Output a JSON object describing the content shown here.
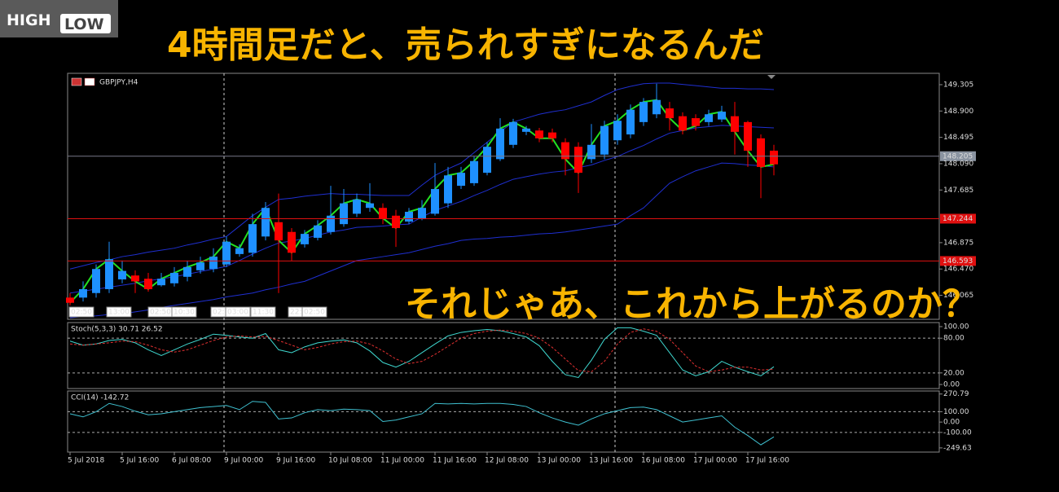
{
  "logo": {
    "left": "HIGH",
    "right": "LOW"
  },
  "captions": [
    "4時間足だと、売られすぎになるんだ",
    "それじゃあ、これから上がるのか？"
  ],
  "chart_data": [
    {
      "type": "candlestick",
      "title": "GBPJPY,H4",
      "categories": [
        "5 Jul 2018",
        null,
        null,
        null,
        "5 Jul 16:00",
        null,
        null,
        null,
        "6 Jul 08:00",
        null,
        null,
        null,
        "9 Jul 00:00",
        null,
        null,
        null,
        "9 Jul 16:00",
        null,
        null,
        null,
        "10 Jul 08:00",
        null,
        null,
        null,
        "11 Jul 00:00",
        null,
        null,
        null,
        "11 Jul 16:00",
        null,
        null,
        null,
        "12 Jul 08:00",
        null,
        null,
        null,
        "13 Jul 00:00",
        null,
        null,
        null,
        "13 Jul 16:00",
        null,
        null,
        null,
        "16 Jul 08:00",
        null,
        null,
        null,
        "17 Jul 00:00",
        null,
        null,
        null,
        "17 Jul 16:00",
        null,
        null
      ],
      "open": [
        146.03,
        146.03,
        146.1,
        146.16,
        146.31,
        146.37,
        146.32,
        146.22,
        146.25,
        146.35,
        146.45,
        146.47,
        146.54,
        146.7,
        146.72,
        146.97,
        147.19,
        147.04,
        146.85,
        146.95,
        147.04,
        147.16,
        147.32,
        147.41,
        147.41,
        147.29,
        147.2,
        147.25,
        147.32,
        147.48,
        147.75,
        147.79,
        147.95,
        148.16,
        148.38,
        148.58,
        148.6,
        148.57,
        148.42,
        148.35,
        148.16,
        148.23,
        148.45,
        148.54,
        148.73,
        148.85,
        148.94,
        148.82,
        148.79,
        148.73,
        148.77,
        148.82,
        148.73,
        148.48,
        148.29
      ],
      "high": [
        146.1,
        146.28,
        146.54,
        146.89,
        146.6,
        146.45,
        146.41,
        146.41,
        146.5,
        146.6,
        146.66,
        146.79,
        146.97,
        146.85,
        147.32,
        147.5,
        147.63,
        147.1,
        147.07,
        147.22,
        147.75,
        147.7,
        147.63,
        147.79,
        147.48,
        147.38,
        147.41,
        147.53,
        148.1,
        148.04,
        148.04,
        148.2,
        148.42,
        148.79,
        148.78,
        148.67,
        148.64,
        148.63,
        148.48,
        148.42,
        148.7,
        148.75,
        148.85,
        149.0,
        149.1,
        149.32,
        149.04,
        148.88,
        148.85,
        148.92,
        148.98,
        149.04,
        148.75,
        148.54,
        148.38
      ],
      "low": [
        145.91,
        145.97,
        146.03,
        146.1,
        146.25,
        146.1,
        146.12,
        146.2,
        146.2,
        146.28,
        146.4,
        146.42,
        146.5,
        146.66,
        146.66,
        146.91,
        146.1,
        146.6,
        146.8,
        146.91,
        147.0,
        147.12,
        147.27,
        147.35,
        147.16,
        146.81,
        147.16,
        147.22,
        147.29,
        147.41,
        147.7,
        147.75,
        147.91,
        148.13,
        148.33,
        148.53,
        148.42,
        148.42,
        147.91,
        147.64,
        148.1,
        148.16,
        148.38,
        148.48,
        148.67,
        148.79,
        148.6,
        148.54,
        148.6,
        148.67,
        148.73,
        148.23,
        148.04,
        147.56,
        147.91
      ],
      "close": [
        145.95,
        146.16,
        146.47,
        146.62,
        146.44,
        146.28,
        146.16,
        146.32,
        146.41,
        146.5,
        146.57,
        146.66,
        146.89,
        146.79,
        147.16,
        147.41,
        146.91,
        146.72,
        147.01,
        147.14,
        147.29,
        147.48,
        147.54,
        147.48,
        147.25,
        147.1,
        147.35,
        147.41,
        147.7,
        147.91,
        147.95,
        148.13,
        148.35,
        148.63,
        148.73,
        148.63,
        148.48,
        148.48,
        148.16,
        147.95,
        148.38,
        148.67,
        148.75,
        148.92,
        149.04,
        149.07,
        148.79,
        148.6,
        148.67,
        148.85,
        148.89,
        148.58,
        148.29,
        148.04,
        148.08
      ],
      "up_color": "#1e90ff",
      "down_color": "#ff0000",
      "overlays": [
        {
          "color": "#1f2fd0",
          "values": [
            146.47,
            146.52,
            146.57,
            146.61,
            146.66,
            146.69,
            146.73,
            146.76,
            146.79,
            146.84,
            146.88,
            146.93,
            146.97,
            147.13,
            147.29,
            147.42,
            147.54,
            147.56,
            147.59,
            147.61,
            147.63,
            147.62,
            147.62,
            147.61,
            147.6,
            147.6,
            147.6,
            147.76,
            147.91,
            148.01,
            148.1,
            148.26,
            148.42,
            148.58,
            148.73,
            148.79,
            148.85,
            148.89,
            148.92,
            148.98,
            149.04,
            149.14,
            149.23,
            149.28,
            149.32,
            149.33,
            149.33,
            149.31,
            149.29,
            149.27,
            149.25,
            149.25,
            149.24,
            149.24,
            149.23
          ]
        },
        {
          "color": "#1f2fd0",
          "values": [
            146.1,
            146.13,
            146.16,
            146.19,
            146.22,
            146.25,
            146.29,
            146.32,
            146.35,
            146.39,
            146.43,
            146.47,
            146.51,
            146.6,
            146.7,
            146.79,
            146.87,
            146.9,
            146.94,
            146.99,
            147.04,
            147.07,
            147.11,
            147.12,
            147.13,
            147.15,
            147.16,
            147.27,
            147.37,
            147.44,
            147.51,
            147.6,
            147.68,
            147.77,
            147.85,
            147.89,
            147.93,
            147.96,
            147.98,
            148.03,
            148.07,
            148.14,
            148.2,
            148.29,
            148.37,
            148.47,
            148.56,
            148.6,
            148.64,
            148.66,
            148.68,
            148.67,
            148.66,
            148.65,
            148.64
          ]
        },
        {
          "color": "#1f2fd0",
          "values": [
            145.72,
            145.74,
            145.75,
            145.77,
            145.78,
            145.81,
            145.84,
            145.88,
            145.91,
            145.94,
            145.97,
            146.0,
            146.04,
            146.07,
            146.1,
            146.15,
            146.19,
            146.24,
            146.28,
            146.36,
            146.44,
            146.52,
            146.6,
            146.63,
            146.66,
            146.69,
            146.72,
            146.77,
            146.82,
            146.86,
            146.91,
            146.93,
            146.94,
            146.96,
            146.97,
            146.99,
            147.01,
            147.02,
            147.04,
            147.07,
            147.1,
            147.13,
            147.16,
            147.29,
            147.41,
            147.6,
            147.79,
            147.89,
            147.98,
            148.04,
            148.1,
            148.09,
            148.07,
            148.06,
            148.04
          ]
        },
        {
          "color": "#22e022",
          "values": [
            145.95,
            146.16,
            146.47,
            146.62,
            146.44,
            146.28,
            146.16,
            146.32,
            146.41,
            146.5,
            146.57,
            146.66,
            146.89,
            146.79,
            147.16,
            147.41,
            146.91,
            146.72,
            147.01,
            147.14,
            147.29,
            147.48,
            147.54,
            147.48,
            147.25,
            147.1,
            147.35,
            147.41,
            147.7,
            147.91,
            147.95,
            148.13,
            148.35,
            148.63,
            148.73,
            148.63,
            148.48,
            148.48,
            148.16,
            147.95,
            148.38,
            148.67,
            148.75,
            148.92,
            149.04,
            149.07,
            148.79,
            148.6,
            148.67,
            148.85,
            148.89,
            148.58,
            148.29,
            148.04,
            148.08
          ]
        }
      ],
      "ylim": [
        145.696,
        149.48
      ],
      "yticks": [
        149.305,
        {
          "value": 148.9,
          "label": "148.900"
        },
        148.495,
        {
          "value": 148.09,
          "label": "148.090"
        },
        147.685,
        146.875,
        {
          "value": 146.47,
          "label": "146.470"
        },
        146.065
      ],
      "current_price": 148.205,
      "levels": [
        147.244,
        146.593
      ],
      "time_tags": [
        "02:50",
        "13:00",
        "02:50",
        "10:30",
        "02:",
        "03:00",
        "11:30",
        "22:",
        "02:50"
      ]
    },
    {
      "type": "line",
      "title": "Stoch(5,3,3) 30.71 26.52",
      "series": [
        {
          "color": "#3fd8d0",
          "values": [
            75,
            68,
            70,
            76,
            78,
            72,
            60,
            50,
            60,
            70,
            78,
            87,
            85,
            82,
            80,
            88,
            60,
            55,
            65,
            72,
            75,
            77,
            72,
            58,
            38,
            30,
            40,
            55,
            70,
            84,
            90,
            93,
            95,
            93,
            88,
            82,
            67,
            40,
            17,
            12,
            42,
            78,
            98,
            98,
            92,
            85,
            55,
            25,
            15,
            22,
            40,
            30,
            22,
            15,
            30.71
          ]
        },
        {
          "color": "#e03030",
          "dash": true,
          "values": [
            70,
            68,
            70,
            72,
            75,
            74,
            68,
            60,
            56,
            60,
            68,
            76,
            82,
            84,
            82,
            83,
            76,
            68,
            60,
            64,
            70,
            74,
            75,
            70,
            58,
            44,
            36,
            40,
            52,
            66,
            80,
            88,
            92,
            94,
            92,
            88,
            80,
            64,
            44,
            24,
            22,
            40,
            70,
            90,
            96,
            92,
            78,
            55,
            32,
            22,
            25,
            30,
            30,
            25,
            26.52
          ]
        }
      ],
      "ylim": [
        -7,
        107
      ],
      "yticks": [
        {
          "value": 100,
          "label": "100.00"
        },
        {
          "value": 80,
          "label": "80.00"
        },
        {
          "value": 20,
          "label": "20.00"
        },
        {
          "value": 0,
          "label": "0.00"
        }
      ],
      "levels": [
        80,
        20
      ]
    },
    {
      "type": "line",
      "title": "CCI(14) -142.72",
      "series": [
        {
          "color": "#3fc0d0",
          "values": [
            80,
            50,
            100,
            180,
            150,
            105,
            70,
            80,
            100,
            120,
            140,
            150,
            160,
            120,
            200,
            190,
            30,
            40,
            90,
            120,
            110,
            125,
            120,
            110,
            5,
            20,
            50,
            80,
            180,
            175,
            180,
            175,
            180,
            180,
            170,
            150,
            90,
            40,
            0,
            -30,
            30,
            80,
            110,
            140,
            145,
            120,
            60,
            0,
            20,
            40,
            60,
            -50,
            -130,
            -220,
            -142.72
          ]
        }
      ],
      "ylim": [
        -290,
        300
      ],
      "yticks": [
        270.79,
        {
          "value": 100,
          "label": "100.00"
        },
        {
          "value": 0,
          "label": "0.00"
        },
        {
          "value": -100,
          "label": "-100.00"
        },
        -249.63
      ],
      "levels": [
        100,
        -100
      ]
    }
  ]
}
